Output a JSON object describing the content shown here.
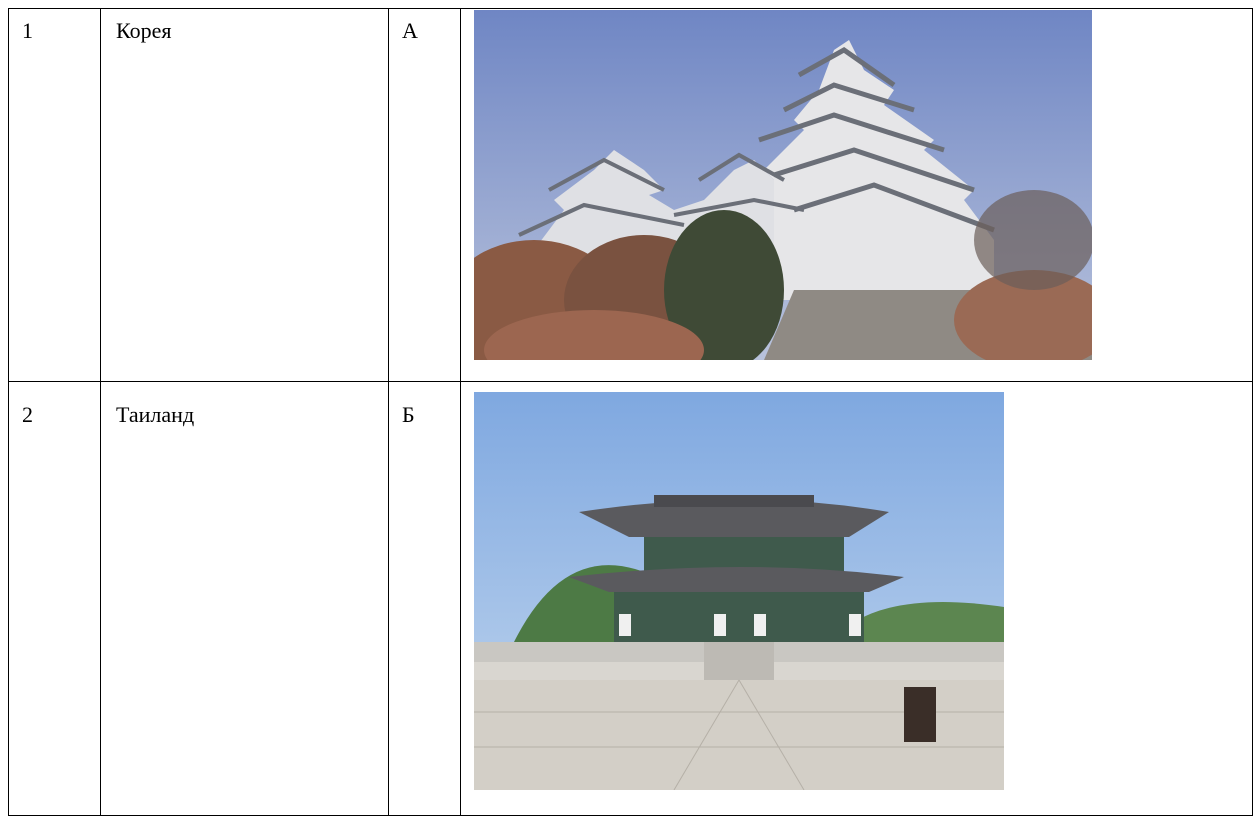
{
  "table": {
    "rows": [
      [
        "1",
        "Корея",
        "А"
      ],
      [
        "2",
        "Таиланд",
        "Б"
      ]
    ]
  }
}
